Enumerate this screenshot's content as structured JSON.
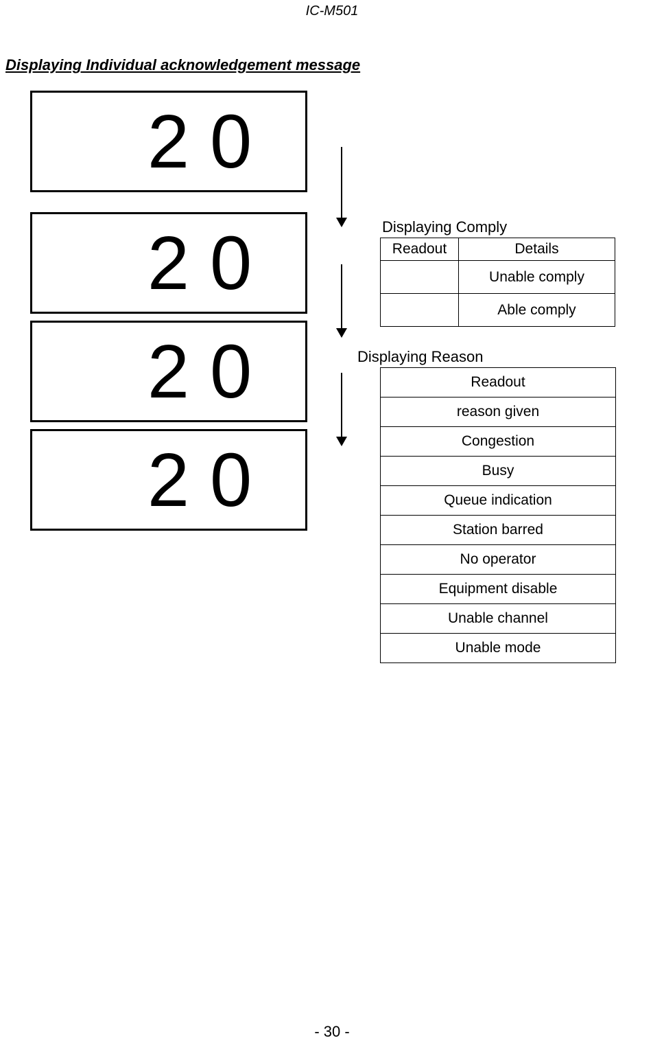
{
  "header": {
    "model": "IC-M501"
  },
  "section": {
    "title": "Displaying Individual acknowledgement message"
  },
  "displays": {
    "box1": "20",
    "box2": "20",
    "box3": "20",
    "box4": "20"
  },
  "comply": {
    "label": "Displaying Comply",
    "headers": {
      "readout": "Readout",
      "details": "Details"
    },
    "rows": [
      {
        "readout": "",
        "details": "Unable comply"
      },
      {
        "readout": "",
        "details": "Able comply"
      }
    ]
  },
  "reason": {
    "label": "Displaying Reason",
    "header": "Readout",
    "rows": [
      "reason given",
      "Congestion",
      "Busy",
      "Queue indication",
      "Station barred",
      "No operator",
      "Equipment disable",
      "Unable channel",
      "Unable mode"
    ]
  },
  "footer": {
    "page": "- 30 -"
  },
  "styling": {
    "page_bg": "#ffffff",
    "text_color": "#000000",
    "border_color": "#000000",
    "box_border_width": 3,
    "display_font_size": 110,
    "body_font_size": 22,
    "table_font_size": 21
  }
}
